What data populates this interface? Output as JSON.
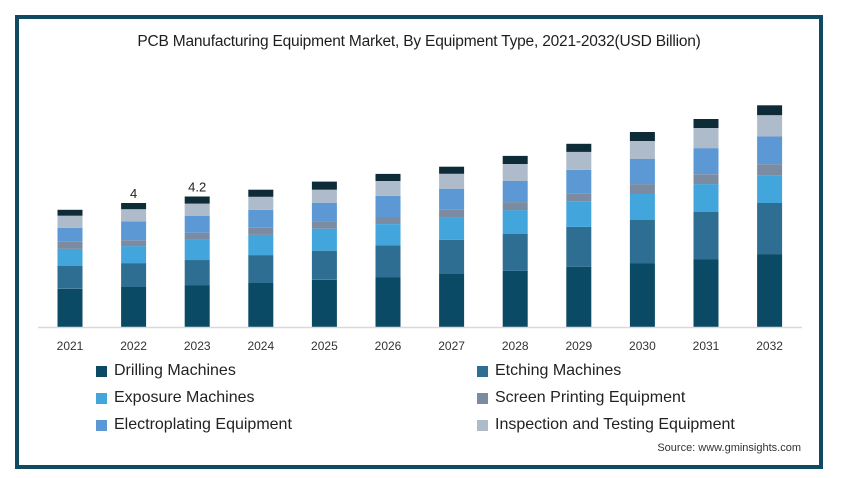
{
  "chart_data": {
    "type": "bar",
    "stacked": true,
    "title": "PCB Manufacturing Equipment Market, By Equipment Type, 2021-2032(USD Billion)",
    "xlabel": "",
    "ylabel": "",
    "ylim": [
      0,
      8
    ],
    "grid": false,
    "categories": [
      "2021",
      "2022",
      "2023",
      "2024",
      "2025",
      "2026",
      "2027",
      "2028",
      "2029",
      "2030",
      "2031",
      "2032"
    ],
    "series": [
      {
        "name": "Drilling Machines",
        "color": "#0b4a64",
        "values": [
          1.23,
          1.29,
          1.35,
          1.42,
          1.52,
          1.61,
          1.71,
          1.81,
          1.94,
          2.06,
          2.19,
          2.35
        ]
      },
      {
        "name": "Etching Machines",
        "color": "#2e6e92",
        "values": [
          0.74,
          0.77,
          0.81,
          0.9,
          0.94,
          1.03,
          1.1,
          1.19,
          1.29,
          1.39,
          1.52,
          1.65
        ]
      },
      {
        "name": "Exposure Machines",
        "color": "#42a6dc",
        "values": [
          0.55,
          0.55,
          0.65,
          0.65,
          0.71,
          0.68,
          0.71,
          0.77,
          0.81,
          0.84,
          0.9,
          0.9
        ]
      },
      {
        "name": "Screen Printing Equipment",
        "color": "#7b8ca2",
        "values": [
          0.23,
          0.19,
          0.23,
          0.23,
          0.23,
          0.23,
          0.26,
          0.26,
          0.26,
          0.32,
          0.32,
          0.35
        ]
      },
      {
        "name": "Electroplating Equipment",
        "color": "#5b98d4",
        "values": [
          0.45,
          0.61,
          0.55,
          0.58,
          0.61,
          0.68,
          0.68,
          0.68,
          0.77,
          0.81,
          0.84,
          0.9
        ]
      },
      {
        "name": "Inspection and Testing Equipment",
        "color": "#aebbca",
        "values": [
          0.39,
          0.39,
          0.39,
          0.42,
          0.42,
          0.48,
          0.48,
          0.55,
          0.58,
          0.58,
          0.65,
          0.68
        ]
      },
      {
        "name": "",
        "color": "#0e2c38",
        "values": [
          0.19,
          0.2,
          0.23,
          0.23,
          0.26,
          0.23,
          0.23,
          0.26,
          0.26,
          0.29,
          0.29,
          0.32
        ]
      }
    ],
    "data_labels": [
      {
        "category": "2022",
        "text": "4"
      },
      {
        "category": "2023",
        "text": "4.2"
      }
    ],
    "legend": {
      "placement": "bottom",
      "items": [
        {
          "label": "Drilling Machines",
          "color": "#0b4a64"
        },
        {
          "label": "Etching Machines",
          "color": "#2e6e92"
        },
        {
          "label": "Exposure Machines",
          "color": "#42a6dc"
        },
        {
          "label": "Screen Printing Equipment",
          "color": "#7b8ca2"
        },
        {
          "label": "Electroplating Equipment",
          "color": "#5b98d4"
        },
        {
          "label": "Inspection and Testing Equipment",
          "color": "#aebbca"
        }
      ]
    },
    "source": "Source: www.gminsights.com"
  },
  "colors": {
    "frame": "#0f4a62",
    "axis": "#d9d9d9"
  }
}
